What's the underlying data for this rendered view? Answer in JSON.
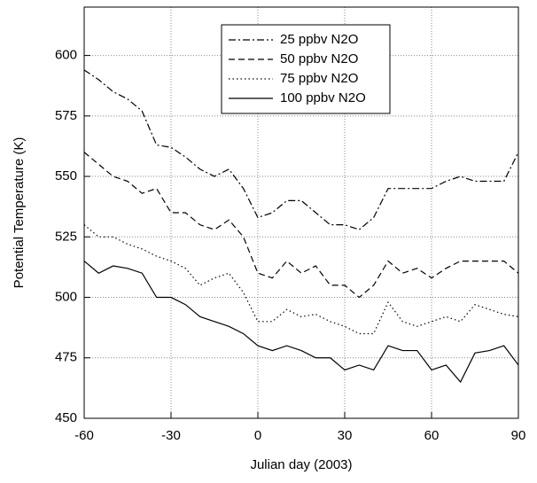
{
  "chart_data": {
    "type": "line",
    "x_label": "Julian day (2003)",
    "y_label": "Potential Temperature (K)",
    "x": [
      -60,
      -55,
      -50,
      -45,
      -40,
      -35,
      -30,
      -25,
      -20,
      -15,
      -10,
      -5,
      0,
      5,
      10,
      15,
      20,
      25,
      30,
      35,
      40,
      45,
      50,
      55,
      60,
      65,
      70,
      75,
      80,
      85,
      90
    ],
    "series": [
      {
        "name": "25 ppbv N2O",
        "color": "#000",
        "style": "dashdot",
        "values": [
          594,
          590,
          585,
          582,
          577,
          563,
          562,
          558,
          553,
          550,
          553,
          545,
          533,
          535,
          540,
          540,
          535,
          530,
          530,
          528,
          533,
          545,
          545,
          545,
          545,
          548,
          550,
          548,
          548,
          548,
          560
        ]
      },
      {
        "name": "50 ppbv N2O",
        "color": "#000",
        "style": "dash",
        "values": [
          560,
          555,
          550,
          548,
          543,
          545,
          535,
          535,
          530,
          528,
          532,
          525,
          510,
          508,
          515,
          510,
          513,
          505,
          505,
          500,
          505,
          515,
          510,
          512,
          508,
          512,
          515,
          515,
          515,
          515,
          510
        ]
      },
      {
        "name": "75 ppbv N2O",
        "color": "#000",
        "style": "dot",
        "values": [
          530,
          525,
          525,
          522,
          520,
          517,
          515,
          512,
          505,
          508,
          510,
          502,
          490,
          490,
          495,
          492,
          493,
          490,
          488,
          485,
          485,
          498,
          490,
          488,
          490,
          492,
          490,
          497,
          495,
          493,
          492
        ]
      },
      {
        "name": "100 ppbv N2O",
        "color": "#000",
        "style": "solid",
        "values": [
          515,
          510,
          513,
          512,
          510,
          500,
          500,
          497,
          492,
          490,
          488,
          485,
          480,
          478,
          480,
          478,
          475,
          475,
          470,
          472,
          470,
          480,
          478,
          478,
          470,
          472,
          465,
          477,
          478,
          480,
          472
        ]
      }
    ],
    "xlim": [
      -60,
      90
    ],
    "xticks": [
      -60,
      -30,
      0,
      30,
      60,
      90
    ],
    "ylim": [
      450,
      620
    ],
    "yticks": [
      450,
      475,
      500,
      525,
      550,
      575,
      600
    ],
    "grid": true,
    "legend": "top"
  }
}
